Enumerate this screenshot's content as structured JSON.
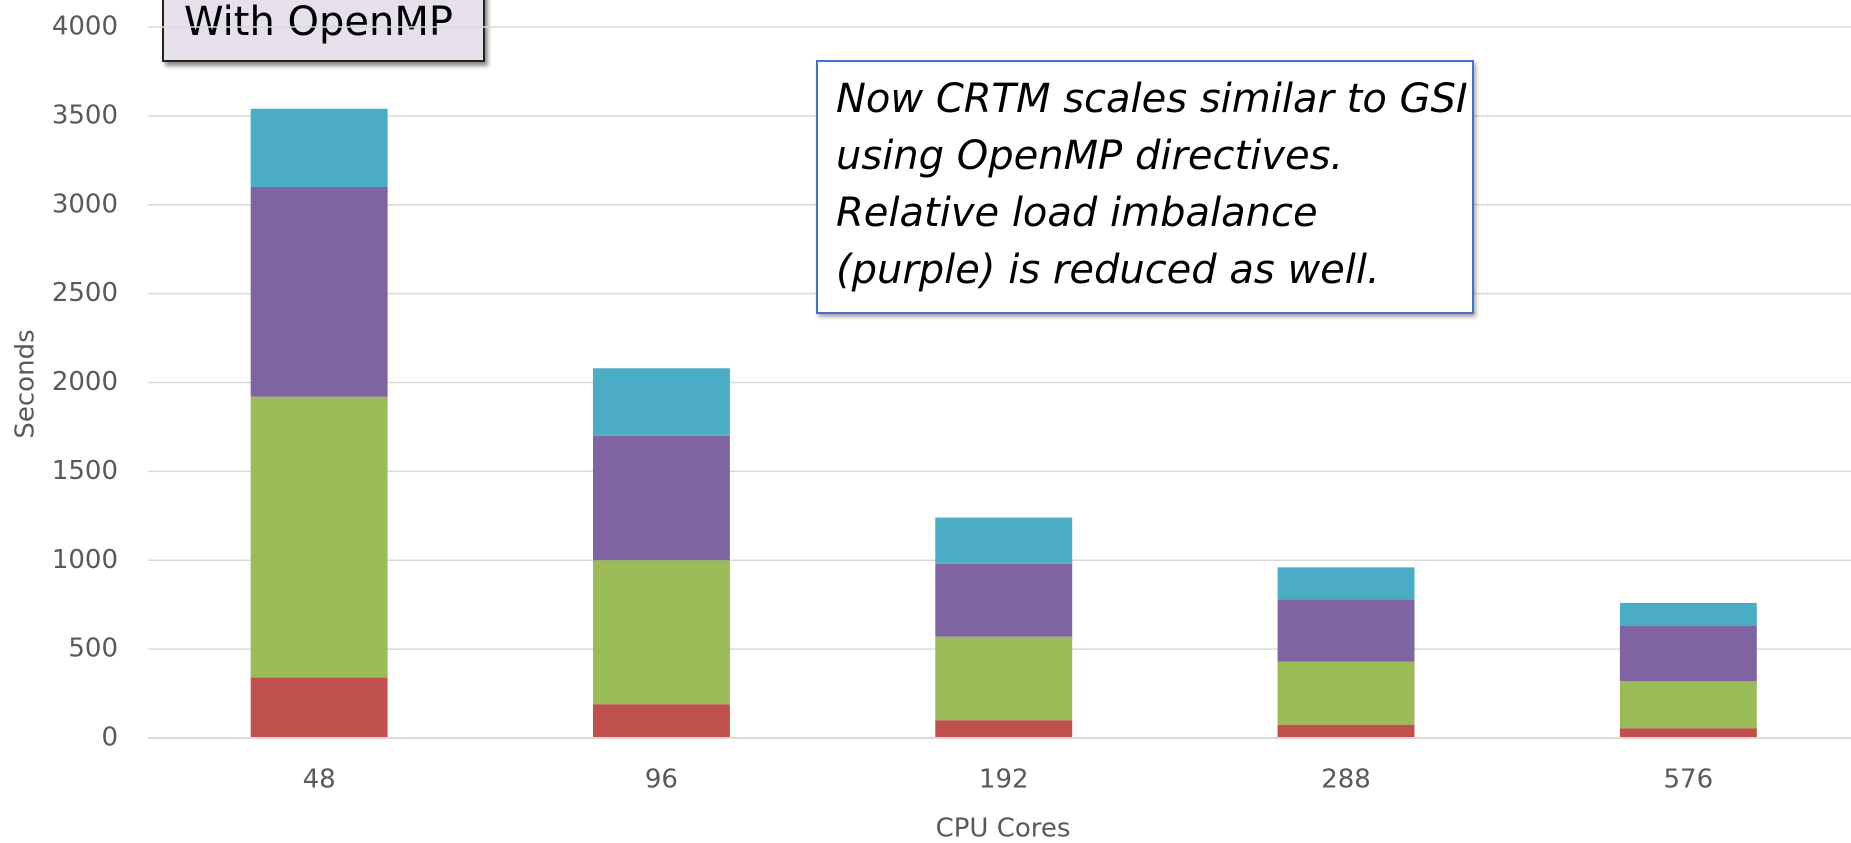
{
  "chart_data": {
    "type": "stacked_bar",
    "title": "With OpenMP",
    "annotation": [
      "Now CRTM scales similar to GSI",
      "using OpenMP directives.",
      "Relative load imbalance",
      "(purple) is reduced as well."
    ],
    "xlabel": "CPU Cores",
    "ylabel": "Seconds",
    "categories": [
      "48",
      "96",
      "192",
      "288",
      "576"
    ],
    "series": [
      {
        "color": "#c0504d",
        "values": [
          340,
          190,
          100,
          75,
          55
        ]
      },
      {
        "color": "#9bbb59",
        "values": [
          1580,
          810,
          470,
          355,
          265
        ]
      },
      {
        "color": "#8064a2",
        "values": [
          1180,
          700,
          410,
          350,
          310
        ]
      },
      {
        "color": "#4bacc6",
        "values": [
          440,
          380,
          260,
          180,
          130
        ]
      }
    ],
    "ylim": [
      0,
      4000
    ],
    "yticks": [
      0,
      500,
      1000,
      1500,
      2000,
      2500,
      3000,
      3500,
      4000
    ],
    "grid": true
  }
}
